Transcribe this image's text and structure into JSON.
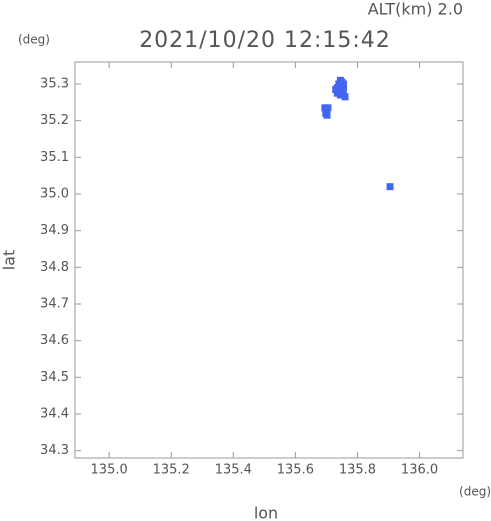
{
  "chart_data": {
    "type": "scatter",
    "title": "2021/10/20 12:15:42",
    "annotation": "ALT(km) 2.0",
    "y_unit": "(deg)",
    "x_unit": "(deg)",
    "xlabel": "lon",
    "ylabel": "lat",
    "xlim": [
      134.89,
      136.14
    ],
    "ylim": [
      34.28,
      35.36
    ],
    "xticks": [
      {
        "value": 135.0,
        "label": "135.0"
      },
      135.2,
      135.4,
      135.6,
      135.8,
      {
        "value": 136.0,
        "label": "136.0"
      }
    ],
    "yticks": [
      34.3,
      34.4,
      34.5,
      34.6,
      34.7,
      34.8,
      34.9,
      {
        "value": 35.0,
        "label": "35.0"
      },
      35.1,
      35.2,
      35.3
    ],
    "series": [
      {
        "color": "#4466ee",
        "x": [
          135.745,
          135.75,
          135.74,
          135.755,
          135.735,
          135.745,
          135.755,
          135.73,
          135.74,
          135.75,
          135.745,
          135.755,
          135.76,
          135.735,
          135.695,
          135.705,
          135.7,
          135.698,
          135.702,
          135.905
        ],
        "y": [
          35.31,
          35.305,
          35.3,
          35.3,
          35.29,
          35.29,
          35.29,
          35.285,
          35.28,
          35.28,
          35.27,
          35.27,
          35.265,
          35.275,
          35.235,
          35.235,
          35.228,
          35.22,
          35.215,
          35.02
        ]
      }
    ]
  }
}
